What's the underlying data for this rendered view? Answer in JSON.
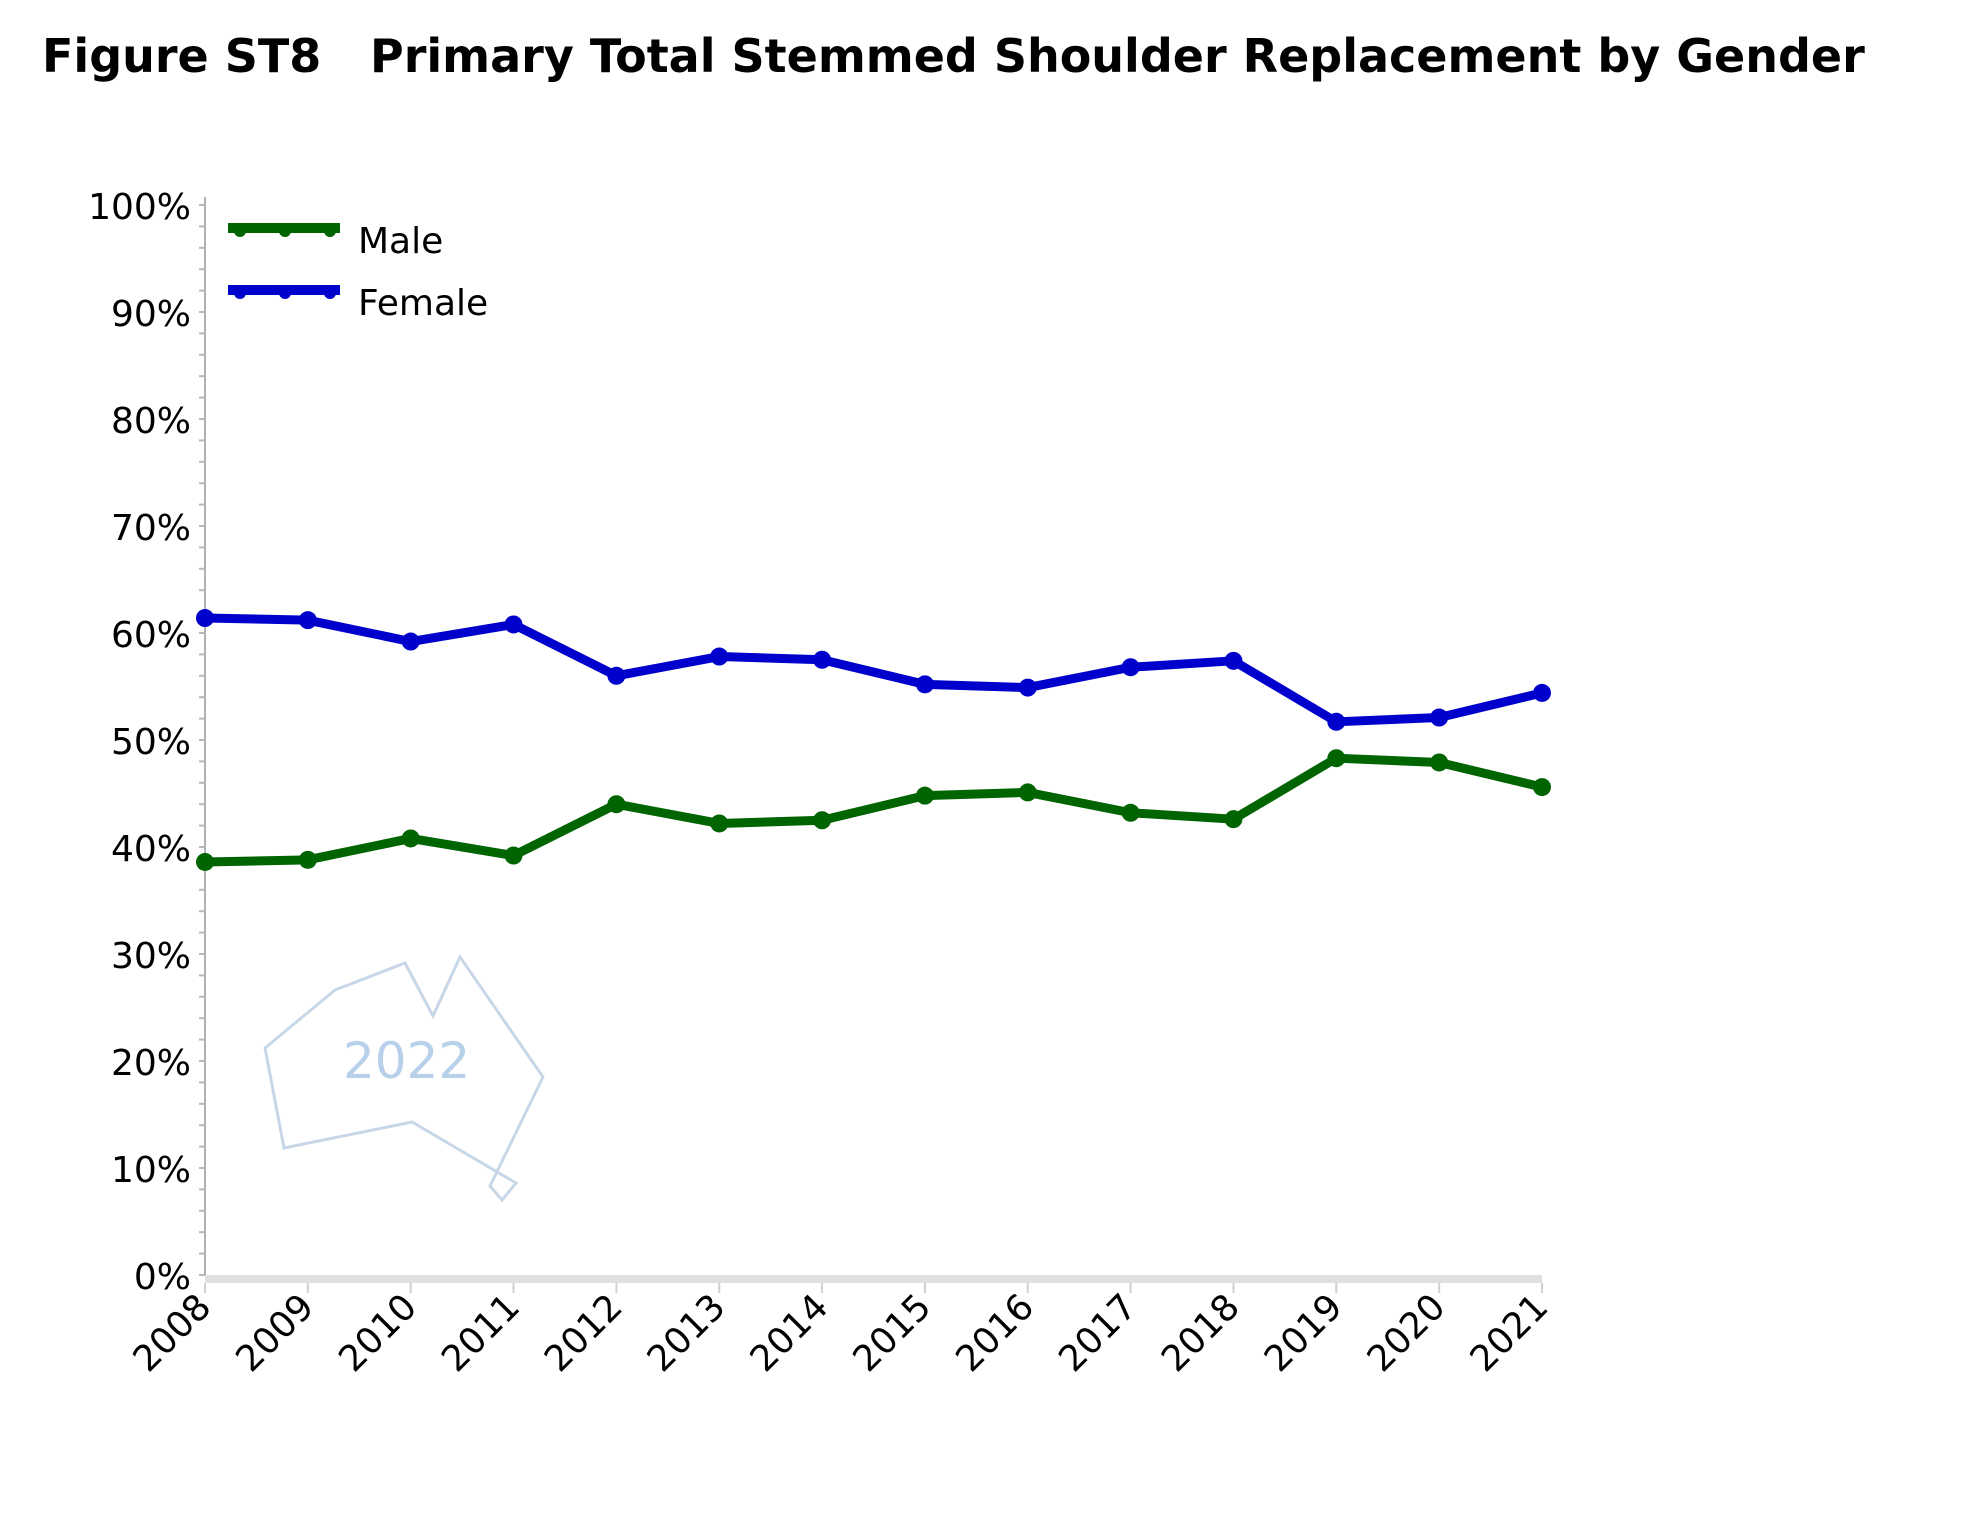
{
  "chart_data": {
    "type": "line",
    "title_prefix": "Figure ST8",
    "title": "Primary Total Stemmed Shoulder Replacement by Gender",
    "xlabel": "",
    "ylabel": "",
    "x": [
      "2008",
      "2009",
      "2010",
      "2011",
      "2012",
      "2013",
      "2014",
      "2015",
      "2016",
      "2017",
      "2018",
      "2019",
      "2020",
      "2021"
    ],
    "ylim": [
      0,
      100
    ],
    "yticks": [
      "0%",
      "10%",
      "20%",
      "30%",
      "40%",
      "50%",
      "60%",
      "70%",
      "80%",
      "90%",
      "100%"
    ],
    "grid": false,
    "legend_position": "top-left",
    "series": [
      {
        "name": "Male",
        "color": "#006400",
        "values": [
          38.6,
          38.8,
          40.8,
          39.2,
          44.0,
          42.2,
          42.5,
          44.8,
          45.1,
          43.2,
          42.6,
          48.3,
          47.9,
          45.6
        ]
      },
      {
        "name": "Female",
        "color": "#0000cc",
        "values": [
          61.4,
          61.2,
          59.2,
          60.8,
          56.0,
          57.8,
          57.5,
          55.2,
          54.9,
          56.8,
          57.4,
          51.7,
          52.1,
          54.4
        ]
      }
    ],
    "watermark": "2022"
  }
}
